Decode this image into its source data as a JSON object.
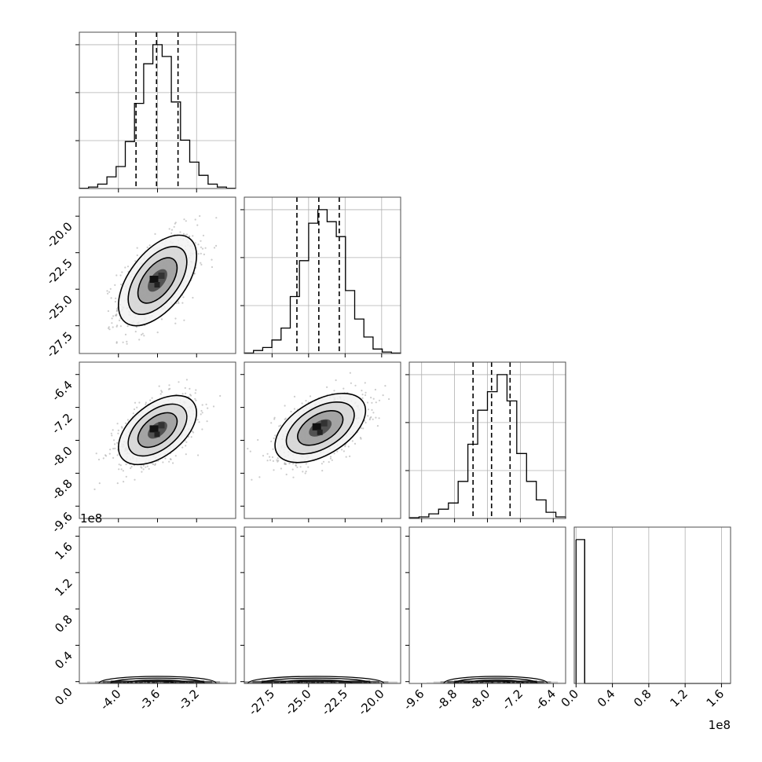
{
  "chart_data": {
    "type": "corner",
    "title": "",
    "parameters": [
      {
        "ticks": [
          "-4.0",
          "-3.6",
          "-3.2"
        ],
        "tick_values": [
          -4.0,
          -3.6,
          -3.2
        ],
        "range": [
          -4.4,
          -2.8
        ],
        "quantiles": [
          -3.82,
          -3.61,
          -3.39
        ]
      },
      {
        "ticks": [
          "-27.5",
          "-25.0",
          "-22.5",
          "-20.0"
        ],
        "tick_values": [
          -27.5,
          -25.0,
          -22.5,
          -20.0
        ],
        "range": [
          -29.4,
          -18.7
        ],
        "quantiles": [
          -25.8,
          -24.3,
          -22.9
        ]
      },
      {
        "ticks": [
          "-9.6",
          "-8.8",
          "-8.0",
          "-7.2",
          "-6.4"
        ],
        "tick_values": [
          -9.6,
          -8.8,
          -8.0,
          -7.2,
          -6.4
        ],
        "range": [
          -9.9,
          -6.1
        ],
        "quantiles": [
          -8.35,
          -7.9,
          -7.45
        ]
      },
      {
        "ticks": [
          "0.0",
          "0.4",
          "0.8",
          "1.2",
          "1.6"
        ],
        "tick_values": [
          0.0,
          0.4,
          0.8,
          1.2,
          1.6
        ],
        "range": [
          -0.02,
          1.7
        ],
        "offset_label": "1e8"
      }
    ],
    "histograms": [
      {
        "param": 0,
        "counts": [
          0.2,
          1.0,
          3.0,
          8.0,
          15.0,
          32.0,
          58.0,
          85.0,
          98.0,
          90.0,
          59.0,
          33.0,
          18.0,
          9.0,
          3.0,
          1.0,
          0.2
        ],
        "hist_ticks": [
          0.333,
          0.667,
          1.0
        ]
      },
      {
        "param": 1,
        "counts": [
          0.3,
          2.0,
          4.0,
          9.0,
          17.0,
          38.0,
          62.0,
          87.0,
          96.0,
          88.0,
          78.0,
          42.0,
          23.0,
          11.0,
          3.0,
          1.0,
          0.3
        ],
        "hist_ticks": [
          0.333,
          0.667,
          1.0
        ]
      },
      {
        "param": 2,
        "counts": [
          0.5,
          1.0,
          3.0,
          6.0,
          10.0,
          24.0,
          48.0,
          70.0,
          82.0,
          93.0,
          76.0,
          42.0,
          24.0,
          12.0,
          4.0,
          1.0
        ],
        "hist_ticks": [
          0.333,
          0.667,
          1.0
        ]
      },
      {
        "param": 3,
        "counts": [
          1.0,
          0.0
        ],
        "bin_edges": [
          0.0,
          0.095,
          1.7
        ]
      }
    ],
    "joint_panels": [
      {
        "x_param": 0,
        "y_param": 1,
        "center": [
          -3.6,
          -24.4
        ],
        "sigma": [
          0.2,
          1.55
        ],
        "rho": 0.55
      },
      {
        "x_param": 0,
        "y_param": 2,
        "center": [
          -3.6,
          -7.75
        ],
        "sigma": [
          0.2,
          0.42
        ],
        "rho": 0.5
      },
      {
        "x_param": 1,
        "y_param": 2,
        "center": [
          -24.2,
          -7.7
        ],
        "sigma": [
          1.55,
          0.42
        ],
        "rho": 0.5
      },
      {
        "x_param": 0,
        "y_param": 3,
        "center": [
          -3.6,
          0.0
        ],
        "sigma": [
          0.2,
          0.0
        ],
        "rho": 0.0
      },
      {
        "x_param": 1,
        "y_param": 3,
        "center": [
          -24.5,
          0.0
        ],
        "sigma": [
          1.55,
          0.0
        ],
        "rho": 0.0
      },
      {
        "x_param": 2,
        "y_param": 3,
        "center": [
          -7.8,
          0.0
        ],
        "sigma": [
          0.42,
          0.0
        ],
        "rho": 0.0
      }
    ],
    "contour_levels_sigma": [
      0.5,
      1.0,
      1.5,
      2.0
    ],
    "grid": true,
    "colors": {
      "points": "#8f8f8f",
      "line": "#000000",
      "grid": "#b0b0b0",
      "frame": "#4d4d4d"
    }
  }
}
